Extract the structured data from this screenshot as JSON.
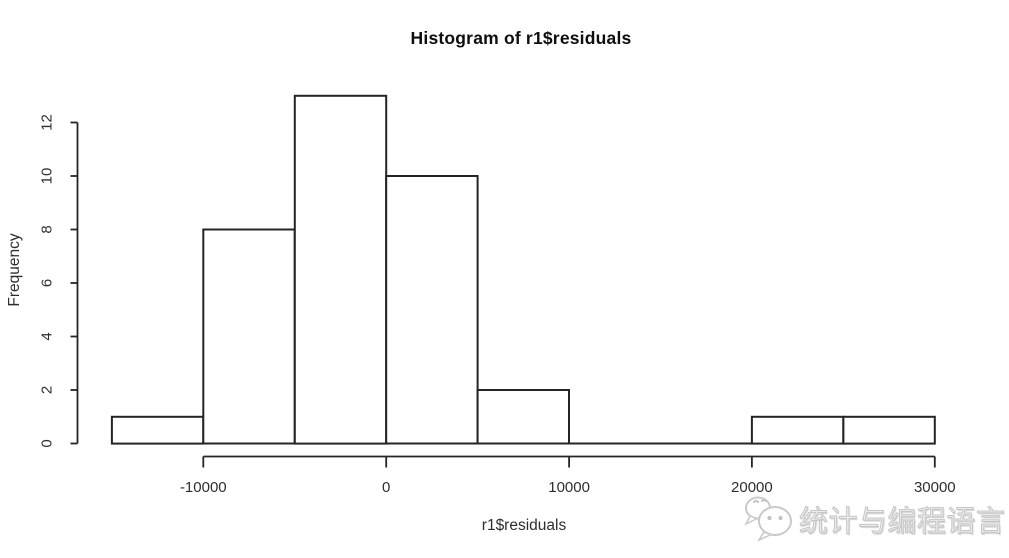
{
  "page": {
    "background": "#ffffff"
  },
  "chart_data": {
    "type": "bar",
    "subtype": "histogram",
    "title": "Histogram of r1$residuals",
    "xlabel": "r1$residuals",
    "ylabel": "Frequency",
    "bin_breaks": [
      -15000,
      -10000,
      -5000,
      0,
      5000,
      10000,
      15000,
      20000,
      25000,
      30000
    ],
    "counts": [
      1,
      8,
      13,
      10,
      2,
      0,
      0,
      1,
      1
    ],
    "x_ticks": [
      -10000,
      0,
      10000,
      20000,
      30000
    ],
    "x_tick_labels": [
      "-10000",
      "0",
      "10000",
      "20000",
      "30000"
    ],
    "y_ticks": [
      0,
      2,
      4,
      6,
      8,
      10,
      12
    ],
    "y_tick_labels": [
      "0",
      "2",
      "4",
      "6",
      "8",
      "10",
      "12"
    ],
    "xlim": [
      -16800,
      31800
    ],
    "ylim": [
      0,
      13
    ],
    "grid": false,
    "legend": null,
    "bar_fill": "#ffffff",
    "bar_stroke": "#242424",
    "axis_color": "#242424",
    "text_color": "#2e2e2e"
  },
  "watermark": {
    "text": "统计与编程语言",
    "icon": "wechat-bubbles-icon",
    "stroke_color": "#c9c9c9",
    "eye_color": "#c2c2c2"
  }
}
